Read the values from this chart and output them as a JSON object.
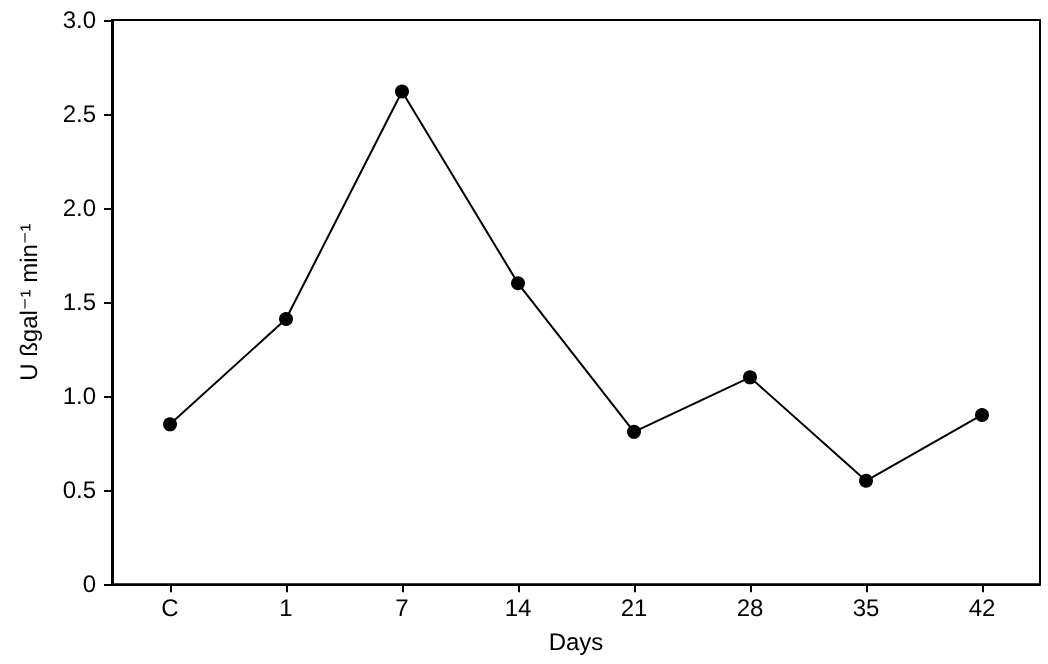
{
  "chart_data": {
    "type": "line",
    "xlabel": "Days",
    "ylabel": "U ßgal⁻¹ min⁻¹",
    "categories": [
      "C",
      "1",
      "7",
      "14",
      "21",
      "28",
      "35",
      "42"
    ],
    "series": [
      {
        "color": "#000000",
        "values": [
          0.85,
          1.41,
          2.62,
          1.6,
          0.81,
          1.1,
          0.55,
          0.9
        ]
      }
    ],
    "ylim": [
      0,
      3
    ],
    "yticks": [
      0,
      {
        "value": 0.5,
        "label": "0.5"
      },
      {
        "value": 1,
        "label": "1.0"
      },
      {
        "value": 1.5,
        "label": "1.5"
      },
      {
        "value": 2,
        "label": "2.0"
      },
      {
        "value": 2.5,
        "label": "2.5"
      },
      {
        "value": 3,
        "label": "3.0"
      }
    ],
    "grid": false,
    "marker": "circle",
    "line_style": "solid"
  }
}
